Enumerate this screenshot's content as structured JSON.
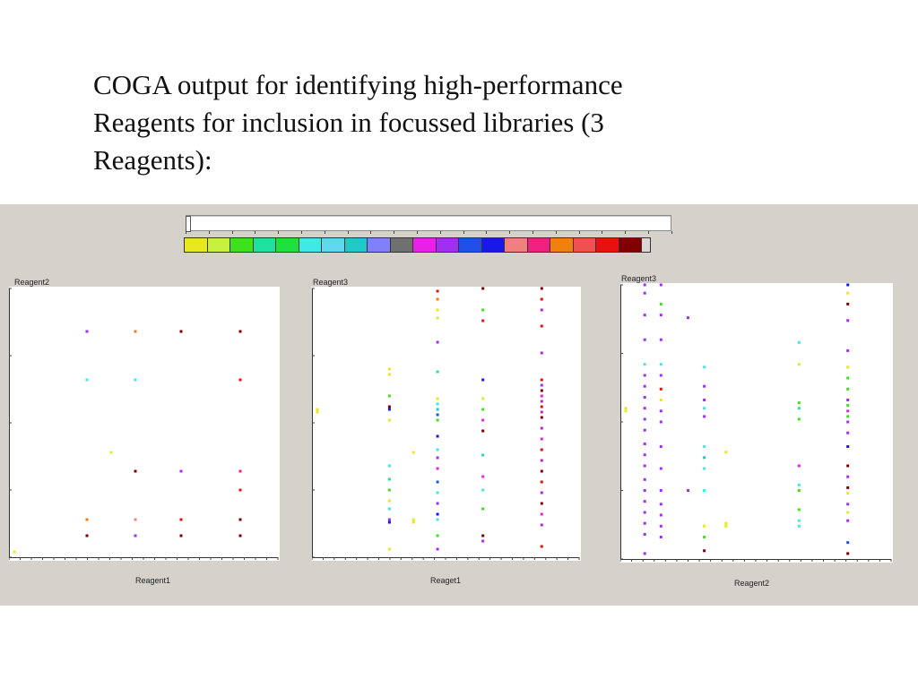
{
  "slide": {
    "title_line1": "COGA output for identifying high-performance",
    "title_line2": "Reagents for inclusion in focussed libraries (3",
    "title_line3": "Reagents):"
  },
  "legend": {
    "colors": [
      "#e8e820",
      "#c8f040",
      "#40e020",
      "#20e0a0",
      "#20e040",
      "#40e8e8",
      "#60d8f0",
      "#20c8c8",
      "#8080f8",
      "#707070",
      "#e820e8",
      "#a030f0",
      "#2050e8",
      "#1818e8",
      "#f08080",
      "#f02080",
      "#f08010",
      "#f05050",
      "#e81010",
      "#800000",
      "#d8d8d8"
    ]
  },
  "chart_data": [
    {
      "type": "scatter",
      "title": "",
      "xlabel": "Reagent1",
      "ylabel": "Reagent2",
      "xlim": [
        0,
        100
      ],
      "ylim": [
        0,
        100
      ],
      "points": [
        {
          "x": 29,
          "y": 84,
          "color": "#a030f0"
        },
        {
          "x": 47,
          "y": 84,
          "color": "#f08010"
        },
        {
          "x": 64,
          "y": 84,
          "color": "#800000"
        },
        {
          "x": 86,
          "y": 84,
          "color": "#800000"
        },
        {
          "x": 29,
          "y": 66,
          "color": "#40e8e8"
        },
        {
          "x": 47,
          "y": 66,
          "color": "#40e8e8"
        },
        {
          "x": 86,
          "y": 66,
          "color": "#e81010"
        },
        {
          "x": 38,
          "y": 39,
          "color": "#e8e820"
        },
        {
          "x": 47,
          "y": 32,
          "color": "#800000"
        },
        {
          "x": 64,
          "y": 32,
          "color": "#a030f0"
        },
        {
          "x": 86,
          "y": 32,
          "color": "#f02080"
        },
        {
          "x": 86,
          "y": 25,
          "color": "#e81010"
        },
        {
          "x": 29,
          "y": 14,
          "color": "#f08010"
        },
        {
          "x": 47,
          "y": 14,
          "color": "#f08080"
        },
        {
          "x": 64,
          "y": 14,
          "color": "#e81010"
        },
        {
          "x": 86,
          "y": 14,
          "color": "#800000"
        },
        {
          "x": 29,
          "y": 8,
          "color": "#800000"
        },
        {
          "x": 47,
          "y": 8,
          "color": "#a030f0"
        },
        {
          "x": 64,
          "y": 8,
          "color": "#800000"
        },
        {
          "x": 86,
          "y": 8,
          "color": "#800000"
        },
        {
          "x": 2,
          "y": 2,
          "color": "#e8e820"
        }
      ]
    },
    {
      "type": "scatter",
      "title": "",
      "xlabel": "Reaget1",
      "ylabel": "Reagent3",
      "xlim": [
        0,
        100
      ],
      "ylim": [
        0,
        100
      ],
      "points": [
        {
          "x": 2,
          "y": 54,
          "color": "#e8e820"
        },
        {
          "x": 2,
          "y": 55,
          "color": "#e8e820"
        },
        {
          "x": 29,
          "y": 70,
          "color": "#e8e820"
        },
        {
          "x": 29,
          "y": 68,
          "color": "#e8e820"
        },
        {
          "x": 29,
          "y": 60,
          "color": "#40e020"
        },
        {
          "x": 29,
          "y": 56,
          "color": "#800000"
        },
        {
          "x": 29,
          "y": 55,
          "color": "#1818e8"
        },
        {
          "x": 29,
          "y": 51,
          "color": "#e8e820"
        },
        {
          "x": 29,
          "y": 34,
          "color": "#40e8e8"
        },
        {
          "x": 29,
          "y": 29,
          "color": "#20e0a0"
        },
        {
          "x": 29,
          "y": 25,
          "color": "#40e020"
        },
        {
          "x": 29,
          "y": 21,
          "color": "#e8e820"
        },
        {
          "x": 29,
          "y": 18,
          "color": "#40e8e8"
        },
        {
          "x": 29,
          "y": 14,
          "color": "#a030f0"
        },
        {
          "x": 29,
          "y": 13,
          "color": "#1818e8"
        },
        {
          "x": 29,
          "y": 3,
          "color": "#e8e820"
        },
        {
          "x": 38,
          "y": 39,
          "color": "#e8e820"
        },
        {
          "x": 38,
          "y": 14,
          "color": "#e8e820"
        },
        {
          "x": 38,
          "y": 13,
          "color": "#e8e820"
        },
        {
          "x": 47,
          "y": 99,
          "color": "#e81010"
        },
        {
          "x": 47,
          "y": 96,
          "color": "#f08010"
        },
        {
          "x": 47,
          "y": 92,
          "color": "#e8e820"
        },
        {
          "x": 47,
          "y": 89,
          "color": "#c8f040"
        },
        {
          "x": 47,
          "y": 80,
          "color": "#a030f0"
        },
        {
          "x": 47,
          "y": 69,
          "color": "#20e0a0"
        },
        {
          "x": 47,
          "y": 59,
          "color": "#e8e820"
        },
        {
          "x": 47,
          "y": 57,
          "color": "#40e8e8"
        },
        {
          "x": 47,
          "y": 55,
          "color": "#20c8c8"
        },
        {
          "x": 47,
          "y": 53,
          "color": "#2050e8"
        },
        {
          "x": 47,
          "y": 51,
          "color": "#40e020"
        },
        {
          "x": 47,
          "y": 45,
          "color": "#1818e8"
        },
        {
          "x": 47,
          "y": 40,
          "color": "#40e8e8"
        },
        {
          "x": 47,
          "y": 37,
          "color": "#a030f0"
        },
        {
          "x": 47,
          "y": 33,
          "color": "#e820e8"
        },
        {
          "x": 47,
          "y": 28,
          "color": "#2050e8"
        },
        {
          "x": 47,
          "y": 24,
          "color": "#40e8e8"
        },
        {
          "x": 47,
          "y": 20,
          "color": "#a030f0"
        },
        {
          "x": 47,
          "y": 16,
          "color": "#1818e8"
        },
        {
          "x": 47,
          "y": 14,
          "color": "#40e8e8"
        },
        {
          "x": 47,
          "y": 8,
          "color": "#40e020"
        },
        {
          "x": 47,
          "y": 3,
          "color": "#a030f0"
        },
        {
          "x": 64,
          "y": 100,
          "color": "#800000"
        },
        {
          "x": 64,
          "y": 92,
          "color": "#40e020"
        },
        {
          "x": 64,
          "y": 88,
          "color": "#e81010"
        },
        {
          "x": 64,
          "y": 66,
          "color": "#1818e8"
        },
        {
          "x": 64,
          "y": 59,
          "color": "#e8e820"
        },
        {
          "x": 64,
          "y": 55,
          "color": "#40e020"
        },
        {
          "x": 64,
          "y": 51,
          "color": "#e820e8"
        },
        {
          "x": 64,
          "y": 47,
          "color": "#800000"
        },
        {
          "x": 64,
          "y": 38,
          "color": "#20e0a0"
        },
        {
          "x": 64,
          "y": 30,
          "color": "#e820e8"
        },
        {
          "x": 64,
          "y": 25,
          "color": "#40e8e8"
        },
        {
          "x": 64,
          "y": 18,
          "color": "#40e020"
        },
        {
          "x": 64,
          "y": 8,
          "color": "#800000"
        },
        {
          "x": 64,
          "y": 6,
          "color": "#a030f0"
        },
        {
          "x": 86,
          "y": 100,
          "color": "#800000"
        },
        {
          "x": 86,
          "y": 96,
          "color": "#e81010"
        },
        {
          "x": 86,
          "y": 92,
          "color": "#a030f0"
        },
        {
          "x": 86,
          "y": 86,
          "color": "#e81010"
        },
        {
          "x": 86,
          "y": 76,
          "color": "#a030f0"
        },
        {
          "x": 86,
          "y": 66,
          "color": "#e81010"
        },
        {
          "x": 86,
          "y": 64,
          "color": "#a030f0"
        },
        {
          "x": 86,
          "y": 62,
          "color": "#800000"
        },
        {
          "x": 86,
          "y": 60,
          "color": "#e820e8"
        },
        {
          "x": 86,
          "y": 58,
          "color": "#a030f0"
        },
        {
          "x": 86,
          "y": 56,
          "color": "#e81010"
        },
        {
          "x": 86,
          "y": 54,
          "color": "#a030f0"
        },
        {
          "x": 86,
          "y": 52,
          "color": "#800000"
        },
        {
          "x": 86,
          "y": 48,
          "color": "#a030f0"
        },
        {
          "x": 86,
          "y": 44,
          "color": "#e820e8"
        },
        {
          "x": 86,
          "y": 40,
          "color": "#e81010"
        },
        {
          "x": 86,
          "y": 36,
          "color": "#a030f0"
        },
        {
          "x": 86,
          "y": 32,
          "color": "#800000"
        },
        {
          "x": 86,
          "y": 28,
          "color": "#e81010"
        },
        {
          "x": 86,
          "y": 24,
          "color": "#a030f0"
        },
        {
          "x": 86,
          "y": 20,
          "color": "#800000"
        },
        {
          "x": 86,
          "y": 16,
          "color": "#e820e8"
        },
        {
          "x": 86,
          "y": 12,
          "color": "#a030f0"
        },
        {
          "x": 86,
          "y": 4,
          "color": "#e81010"
        }
      ]
    },
    {
      "type": "scatter",
      "title": "",
      "xlabel": "Reagent2",
      "ylabel": "Reagent3",
      "xlim": [
        0,
        100
      ],
      "ylim": [
        0,
        100
      ],
      "points": [
        {
          "x": 2,
          "y": 55,
          "color": "#e8e820"
        },
        {
          "x": 2,
          "y": 54,
          "color": "#e8e820"
        },
        {
          "x": 9,
          "y": 100,
          "color": "#a030f0"
        },
        {
          "x": 9,
          "y": 97,
          "color": "#a030f0"
        },
        {
          "x": 9,
          "y": 89,
          "color": "#a030f0"
        },
        {
          "x": 9,
          "y": 80,
          "color": "#a030f0"
        },
        {
          "x": 9,
          "y": 71,
          "color": "#40e8e8"
        },
        {
          "x": 9,
          "y": 67,
          "color": "#a030f0"
        },
        {
          "x": 9,
          "y": 63,
          "color": "#a030f0"
        },
        {
          "x": 9,
          "y": 59,
          "color": "#a030f0"
        },
        {
          "x": 9,
          "y": 55,
          "color": "#a030f0"
        },
        {
          "x": 9,
          "y": 51,
          "color": "#a030f0"
        },
        {
          "x": 9,
          "y": 47,
          "color": "#a030f0"
        },
        {
          "x": 9,
          "y": 42,
          "color": "#a030f0"
        },
        {
          "x": 9,
          "y": 38,
          "color": "#a030f0"
        },
        {
          "x": 9,
          "y": 34,
          "color": "#a030f0"
        },
        {
          "x": 9,
          "y": 29,
          "color": "#a030f0"
        },
        {
          "x": 9,
          "y": 25,
          "color": "#a030f0"
        },
        {
          "x": 9,
          "y": 21,
          "color": "#a030f0"
        },
        {
          "x": 9,
          "y": 17,
          "color": "#a030f0"
        },
        {
          "x": 9,
          "y": 13,
          "color": "#a030f0"
        },
        {
          "x": 9,
          "y": 9,
          "color": "#a030f0"
        },
        {
          "x": 9,
          "y": 2,
          "color": "#a030f0"
        },
        {
          "x": 15,
          "y": 100,
          "color": "#a030f0"
        },
        {
          "x": 15,
          "y": 93,
          "color": "#40e020"
        },
        {
          "x": 15,
          "y": 89,
          "color": "#a030f0"
        },
        {
          "x": 15,
          "y": 80,
          "color": "#a030f0"
        },
        {
          "x": 15,
          "y": 71,
          "color": "#40e8e8"
        },
        {
          "x": 15,
          "y": 67,
          "color": "#a030f0"
        },
        {
          "x": 15,
          "y": 62,
          "color": "#e81010"
        },
        {
          "x": 15,
          "y": 58,
          "color": "#e8e820"
        },
        {
          "x": 15,
          "y": 54,
          "color": "#a030f0"
        },
        {
          "x": 15,
          "y": 50,
          "color": "#a030f0"
        },
        {
          "x": 15,
          "y": 41,
          "color": "#a030f0"
        },
        {
          "x": 15,
          "y": 33,
          "color": "#a030f0"
        },
        {
          "x": 15,
          "y": 25,
          "color": "#a030f0"
        },
        {
          "x": 15,
          "y": 20,
          "color": "#a030f0"
        },
        {
          "x": 15,
          "y": 16,
          "color": "#a030f0"
        },
        {
          "x": 15,
          "y": 12,
          "color": "#a030f0"
        },
        {
          "x": 15,
          "y": 8,
          "color": "#a030f0"
        },
        {
          "x": 25,
          "y": 88,
          "color": "#a030f0"
        },
        {
          "x": 25,
          "y": 25,
          "color": "#a030f0"
        },
        {
          "x": 31,
          "y": 70,
          "color": "#40e8e8"
        },
        {
          "x": 31,
          "y": 63,
          "color": "#a030f0"
        },
        {
          "x": 31,
          "y": 58,
          "color": "#a030f0"
        },
        {
          "x": 31,
          "y": 55,
          "color": "#40e8e8"
        },
        {
          "x": 31,
          "y": 52,
          "color": "#a030f0"
        },
        {
          "x": 31,
          "y": 41,
          "color": "#40e8e8"
        },
        {
          "x": 31,
          "y": 37,
          "color": "#20c8c8"
        },
        {
          "x": 31,
          "y": 33,
          "color": "#40e8e8"
        },
        {
          "x": 31,
          "y": 25,
          "color": "#40e8e8"
        },
        {
          "x": 31,
          "y": 12,
          "color": "#e8e820"
        },
        {
          "x": 31,
          "y": 8,
          "color": "#40e020"
        },
        {
          "x": 31,
          "y": 3,
          "color": "#800000"
        },
        {
          "x": 39,
          "y": 39,
          "color": "#e8e820"
        },
        {
          "x": 39,
          "y": 13,
          "color": "#e8e820"
        },
        {
          "x": 39,
          "y": 12,
          "color": "#e8e820"
        },
        {
          "x": 66,
          "y": 79,
          "color": "#40e8e8"
        },
        {
          "x": 66,
          "y": 71,
          "color": "#e8e820"
        },
        {
          "x": 66,
          "y": 57,
          "color": "#40e020"
        },
        {
          "x": 66,
          "y": 55,
          "color": "#20e0a0"
        },
        {
          "x": 66,
          "y": 51,
          "color": "#40e020"
        },
        {
          "x": 66,
          "y": 34,
          "color": "#e820e8"
        },
        {
          "x": 66,
          "y": 27,
          "color": "#40e8e8"
        },
        {
          "x": 66,
          "y": 25,
          "color": "#40e020"
        },
        {
          "x": 66,
          "y": 18,
          "color": "#40e020"
        },
        {
          "x": 66,
          "y": 14,
          "color": "#40e8e8"
        },
        {
          "x": 66,
          "y": 12,
          "color": "#40e8e8"
        },
        {
          "x": 84,
          "y": 100,
          "color": "#1818e8"
        },
        {
          "x": 84,
          "y": 97,
          "color": "#e8e820"
        },
        {
          "x": 84,
          "y": 93,
          "color": "#800000"
        },
        {
          "x": 84,
          "y": 87,
          "color": "#a030f0"
        },
        {
          "x": 84,
          "y": 76,
          "color": "#a030f0"
        },
        {
          "x": 84,
          "y": 70,
          "color": "#e8e820"
        },
        {
          "x": 84,
          "y": 66,
          "color": "#40e020"
        },
        {
          "x": 84,
          "y": 62,
          "color": "#40e020"
        },
        {
          "x": 84,
          "y": 58,
          "color": "#a030f0"
        },
        {
          "x": 84,
          "y": 56,
          "color": "#40e020"
        },
        {
          "x": 84,
          "y": 54,
          "color": "#e820e8"
        },
        {
          "x": 84,
          "y": 52,
          "color": "#40e020"
        },
        {
          "x": 84,
          "y": 50,
          "color": "#a030f0"
        },
        {
          "x": 84,
          "y": 46,
          "color": "#a030f0"
        },
        {
          "x": 84,
          "y": 41,
          "color": "#1818e8"
        },
        {
          "x": 84,
          "y": 34,
          "color": "#800000"
        },
        {
          "x": 84,
          "y": 30,
          "color": "#a030f0"
        },
        {
          "x": 84,
          "y": 26,
          "color": "#800000"
        },
        {
          "x": 84,
          "y": 24,
          "color": "#e8e820"
        },
        {
          "x": 84,
          "y": 20,
          "color": "#a030f0"
        },
        {
          "x": 84,
          "y": 17,
          "color": "#e8e820"
        },
        {
          "x": 84,
          "y": 14,
          "color": "#a030f0"
        },
        {
          "x": 84,
          "y": 6,
          "color": "#2050e8"
        },
        {
          "x": 84,
          "y": 2,
          "color": "#800000"
        }
      ]
    }
  ]
}
